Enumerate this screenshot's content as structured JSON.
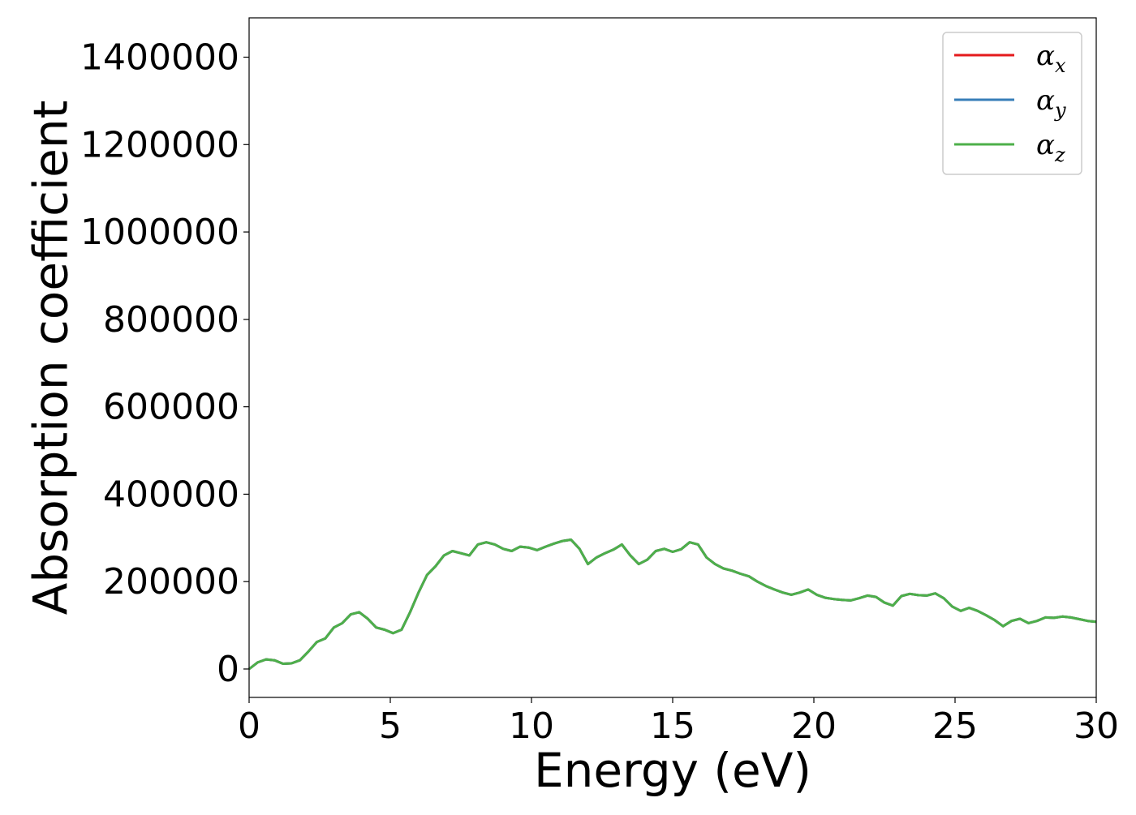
{
  "chart_data": {
    "type": "line",
    "title": "",
    "xlabel": "Energy (eV)",
    "ylabel": "Absorption coefficient",
    "xlim": [
      0,
      30
    ],
    "ylim": [
      -65000,
      1490000
    ],
    "x_ticks": [
      "0",
      "5",
      "10",
      "15",
      "20",
      "25",
      "30"
    ],
    "x_tick_values": [
      0,
      5,
      10,
      15,
      20,
      25,
      30
    ],
    "y_ticks": [
      "0",
      "200000",
      "400000",
      "600000",
      "800000",
      "1000000",
      "1200000",
      "1400000"
    ],
    "y_tick_values": [
      0,
      200000,
      400000,
      600000,
      800000,
      1000000,
      1200000,
      1400000
    ],
    "grid": false,
    "legend_position": "top-right",
    "colors": {
      "alpha_x": "#e41a1c",
      "alpha_y": "#377eb8",
      "alpha_z": "#4daf4a"
    },
    "series": [
      {
        "name": "α",
        "subscript": "x",
        "key": "alpha_x"
      },
      {
        "name": "α",
        "subscript": "y",
        "key": "alpha_y"
      },
      {
        "name": "α",
        "subscript": "z",
        "key": "alpha_z"
      }
    ],
    "x": [
      0,
      0.3,
      0.6,
      0.9,
      1.2,
      1.5,
      1.8,
      2.1,
      2.4,
      2.7,
      3.0,
      3.3,
      3.6,
      3.9,
      4.2,
      4.5,
      4.8,
      5.1,
      5.4,
      5.7,
      6.0,
      6.3,
      6.6,
      6.9,
      7.2,
      7.5,
      7.8,
      8.1,
      8.4,
      8.7,
      9.0,
      9.3,
      9.6,
      9.9,
      10.2,
      10.5,
      10.8,
      11.1,
      11.4,
      11.7,
      12.0,
      12.3,
      12.6,
      12.9,
      13.2,
      13.5,
      13.8,
      14.1,
      14.4,
      14.7,
      15.0,
      15.3,
      15.6,
      15.9,
      16.2,
      16.5,
      16.8,
      17.1,
      17.4,
      17.7,
      18.0,
      18.3,
      18.6,
      18.9,
      19.2,
      19.5,
      19.8,
      20.1,
      20.4,
      20.7,
      21.0,
      21.3,
      21.6,
      21.9,
      22.2,
      22.5,
      22.8,
      23.1,
      23.4,
      23.7,
      24.0,
      24.3,
      24.6,
      24.9,
      25.2,
      25.5,
      25.8,
      26.1,
      26.4,
      26.7,
      27.0,
      27.3,
      27.6,
      27.9,
      28.2,
      28.5,
      28.8,
      29.1,
      29.4,
      29.7,
      30.0
    ],
    "y": [
      0,
      15000,
      22000,
      20000,
      12000,
      13000,
      20000,
      40000,
      62000,
      70000,
      95000,
      105000,
      125000,
      130000,
      115000,
      95000,
      90000,
      82000,
      90000,
      130000,
      175000,
      215000,
      235000,
      260000,
      270000,
      265000,
      260000,
      285000,
      290000,
      285000,
      275000,
      270000,
      280000,
      278000,
      272000,
      280000,
      287000,
      293000,
      296000,
      275000,
      240000,
      255000,
      265000,
      273000,
      285000,
      260000,
      240000,
      250000,
      270000,
      275000,
      268000,
      274000,
      290000,
      285000,
      255000,
      240000,
      230000,
      225000,
      218000,
      212000,
      200000,
      190000,
      182000,
      175000,
      170000,
      175000,
      182000,
      170000,
      163000,
      160000,
      158000,
      157000,
      162000,
      168000,
      165000,
      152000,
      145000,
      167000,
      172000,
      169000,
      168000,
      173000,
      162000,
      143000,
      133000,
      140000,
      133000,
      123000,
      112000,
      98000,
      110000,
      115000,
      105000,
      110000,
      118000,
      117000,
      120000,
      118000,
      114000,
      110000,
      108000
    ]
  }
}
